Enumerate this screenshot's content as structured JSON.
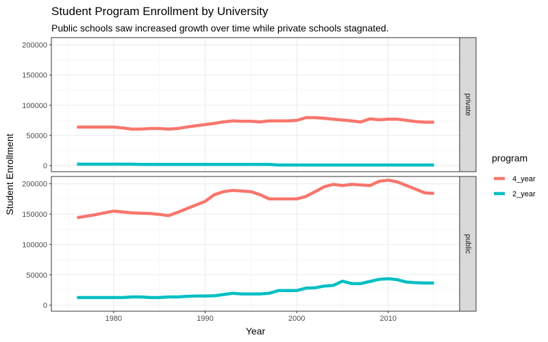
{
  "chart_data": {
    "type": "line",
    "title": "Student Program Enrollment by University",
    "subtitle": "Public schools saw increased growth over time while private schools stagnated.",
    "xlabel": "Year",
    "ylabel": "Student Enrollment",
    "xlim": [
      1973.2,
      2017.8
    ],
    "ylim": [
      -10000,
      212000
    ],
    "x_ticks": [
      1980,
      1990,
      2000,
      2010
    ],
    "y_ticks": [
      0,
      50000,
      100000,
      150000,
      200000
    ],
    "grid": true,
    "legend": {
      "title": "program",
      "position": "right"
    },
    "x": [
      1976,
      1977,
      1978,
      1979,
      1980,
      1981,
      1982,
      1983,
      1984,
      1985,
      1986,
      1987,
      1988,
      1989,
      1990,
      1991,
      1992,
      1993,
      1994,
      1995,
      1996,
      1997,
      1998,
      1999,
      2000,
      2001,
      2002,
      2003,
      2004,
      2005,
      2006,
      2007,
      2008,
      2009,
      2010,
      2011,
      2012,
      2013,
      2014,
      2015
    ],
    "facets": [
      {
        "label": "private",
        "series": [
          {
            "name": "4_year",
            "color": "#F8766D",
            "values": [
              64000,
              64000,
              64000,
              64000,
              64000,
              62500,
              60500,
              60500,
              61500,
              61500,
              60500,
              61500,
              64000,
              66000,
              68000,
              70000,
              72500,
              74000,
              73500,
              73500,
              72500,
              74000,
              74000,
              74000,
              75000,
              79500,
              79500,
              78500,
              77000,
              75500,
              74000,
              72500,
              77500,
              76000,
              77000,
              77000,
              75000,
              73000,
              72000,
              72000
            ]
          },
          {
            "name": "2_year",
            "color": "#00BFC4",
            "values": [
              2500,
              2500,
              2500,
              2500,
              2500,
              2500,
              2500,
              2000,
              2000,
              2000,
              2000,
              2000,
              2000,
              2000,
              2000,
              2000,
              2000,
              2000,
              2000,
              2000,
              2000,
              2000,
              1000,
              1000,
              1000,
              1000,
              1000,
              1000,
              1000,
              1000,
              1000,
              1000,
              1000,
              1000,
              1000,
              1000,
              1000,
              1000,
              1000,
              1000
            ]
          }
        ]
      },
      {
        "label": "public",
        "series": [
          {
            "name": "4_year",
            "color": "#F8766D",
            "values": [
              144000,
              146500,
              149000,
              152000,
              155000,
              153500,
              152000,
              151500,
              151000,
              149500,
              147500,
              153000,
              159000,
              165000,
              171000,
              182000,
              187000,
              189000,
              188000,
              187000,
              182000,
              175000,
              175000,
              175000,
              175000,
              179000,
              187000,
              195000,
              199000,
              197000,
              199000,
              198000,
              197000,
              204000,
              206000,
              203000,
              197000,
              191000,
              185000,
              184000
            ]
          },
          {
            "name": "2_year",
            "color": "#00BFC4",
            "values": [
              12500,
              12500,
              12500,
              12500,
              12500,
              12500,
              13500,
              13500,
              12500,
              12500,
              13500,
              13500,
              14500,
              15000,
              15000,
              15500,
              17500,
              19500,
              18500,
              18500,
              18500,
              19500,
              24000,
              24000,
              24000,
              28000,
              28500,
              31500,
              32500,
              39500,
              35500,
              35500,
              39000,
              42500,
              43500,
              42000,
              38000,
              37000,
              36500,
              36500
            ]
          }
        ]
      }
    ]
  }
}
